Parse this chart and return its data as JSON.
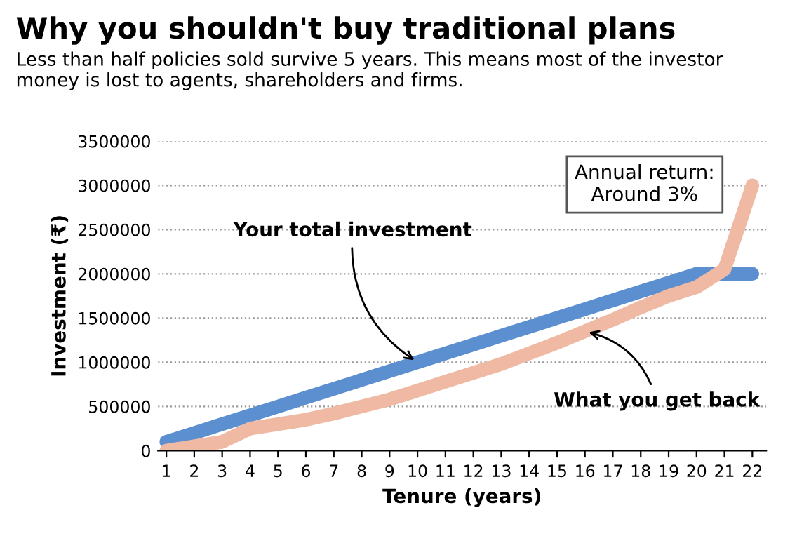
{
  "chart_data": {
    "type": "line",
    "title": "Why you shouldn't buy traditional plans",
    "subtitle": "Less than half policies sold survive 5 years. This means most of the investor money is lost to agents, shareholders and firms.",
    "xlabel": "Tenure (years)",
    "ylabel": "Investment (₹)",
    "x": [
      1,
      2,
      3,
      4,
      5,
      6,
      7,
      8,
      9,
      10,
      11,
      12,
      13,
      14,
      15,
      16,
      17,
      18,
      19,
      20,
      21,
      22
    ],
    "series": [
      {
        "name": "Your total investment",
        "color": "#5b8fd0",
        "values": [
          100000,
          200000,
          300000,
          400000,
          500000,
          600000,
          700000,
          800000,
          900000,
          1000000,
          1100000,
          1200000,
          1300000,
          1400000,
          1500000,
          1600000,
          1700000,
          1800000,
          1900000,
          2000000,
          2000000,
          2000000
        ]
      },
      {
        "name": "What you get back",
        "color": "#efb9a3",
        "values": [
          0,
          50000,
          100000,
          250000,
          300000,
          350000,
          420000,
          500000,
          580000,
          680000,
          780000,
          880000,
          980000,
          1100000,
          1220000,
          1350000,
          1480000,
          1620000,
          1750000,
          1850000,
          2050000,
          3000000
        ]
      }
    ],
    "annotations": [
      "Annual return:\nAround 3%"
    ],
    "xlim": [
      0.7,
      22.5
    ],
    "ylim": [
      0,
      3500000
    ],
    "xticks": [
      1,
      2,
      3,
      4,
      5,
      6,
      7,
      8,
      9,
      10,
      11,
      12,
      13,
      14,
      15,
      16,
      17,
      18,
      19,
      20,
      21,
      22
    ],
    "yticks": [
      0,
      500000,
      1000000,
      1500000,
      2000000,
      2500000,
      3000000,
      3500000
    ],
    "grid": "y",
    "legend": false,
    "marker": "none",
    "line_style": "solid"
  }
}
